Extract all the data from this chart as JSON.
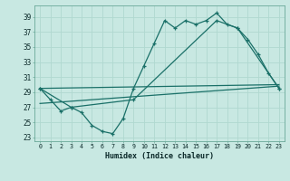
{
  "xlabel": "Humidex (Indice chaleur)",
  "xlim": [
    -0.5,
    23.5
  ],
  "ylim": [
    22.5,
    40.5
  ],
  "yticks": [
    23,
    25,
    27,
    29,
    31,
    33,
    35,
    37,
    39
  ],
  "xticks": [
    0,
    1,
    2,
    3,
    4,
    5,
    6,
    7,
    8,
    9,
    10,
    11,
    12,
    13,
    14,
    15,
    16,
    17,
    18,
    19,
    20,
    21,
    22,
    23
  ],
  "bg_color": "#c8e8e2",
  "grid_color": "#b0d8d0",
  "line_color": "#1a7068",
  "line1_x": [
    0,
    1,
    2,
    3,
    4,
    5,
    6,
    7,
    8,
    9,
    10,
    11,
    12,
    13,
    14,
    15,
    16,
    17,
    18,
    19,
    20,
    21,
    22,
    23
  ],
  "line1_y": [
    29.5,
    28.0,
    26.5,
    27.0,
    26.3,
    24.6,
    23.8,
    23.5,
    25.5,
    29.5,
    32.5,
    35.5,
    38.5,
    37.5,
    38.5,
    38.0,
    38.5,
    39.5,
    38.0,
    37.5,
    36.0,
    34.0,
    31.5,
    29.5
  ],
  "line2_x": [
    0,
    3,
    9,
    17,
    19,
    23
  ],
  "line2_y": [
    29.5,
    27.0,
    28.0,
    38.5,
    37.5,
    29.5
  ],
  "line3_x": [
    0,
    23
  ],
  "line3_y": [
    27.5,
    29.8
  ],
  "line4_x": [
    0,
    23
  ],
  "line4_y": [
    29.5,
    30.0
  ]
}
